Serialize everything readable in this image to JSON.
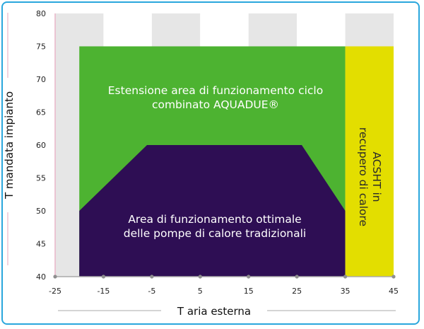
{
  "chart_data": {
    "type": "area",
    "xlabel": "T aria esterna",
    "ylabel": "T mandata impianto",
    "xlim": [
      -25,
      45
    ],
    "ylim": [
      40,
      80
    ],
    "x_ticks": [
      "-25",
      "-15",
      "-5",
      "5",
      "15",
      "25",
      "35",
      "45"
    ],
    "y_ticks": [
      "40",
      "45",
      "50",
      "55",
      "60",
      "65",
      "70",
      "75",
      "80"
    ],
    "grid": "alternating vertical bands every 10 units",
    "colors": {
      "band_dark": "#e6e6e6",
      "band_light": "#ffffff",
      "green": "#4db331",
      "purple": "#2e0e54",
      "yellow": "#e3de00",
      "axis_pink": "#e8b6c9",
      "frame": "#2aa7dd"
    },
    "regions": [
      {
        "name": "green",
        "label_lines": [
          "Estensione area di funzionamento ciclo",
          "combinato AQUADUE®"
        ],
        "points": [
          [
            -20,
            40
          ],
          [
            -20,
            75
          ],
          [
            35,
            75
          ],
          [
            35,
            40
          ]
        ]
      },
      {
        "name": "purple",
        "label_lines": [
          "Area di funzionamento ottimale",
          "delle pompe di calore tradizionali"
        ],
        "points": [
          [
            -20,
            40
          ],
          [
            -20,
            50
          ],
          [
            -6,
            60
          ],
          [
            26,
            60
          ],
          [
            35,
            50
          ],
          [
            35,
            40
          ]
        ]
      },
      {
        "name": "yellow",
        "label_lines": [
          "ACSHT in",
          "recupero di calore"
        ],
        "points": [
          [
            35,
            40
          ],
          [
            35,
            75
          ],
          [
            45,
            75
          ],
          [
            45,
            40
          ]
        ]
      }
    ]
  }
}
